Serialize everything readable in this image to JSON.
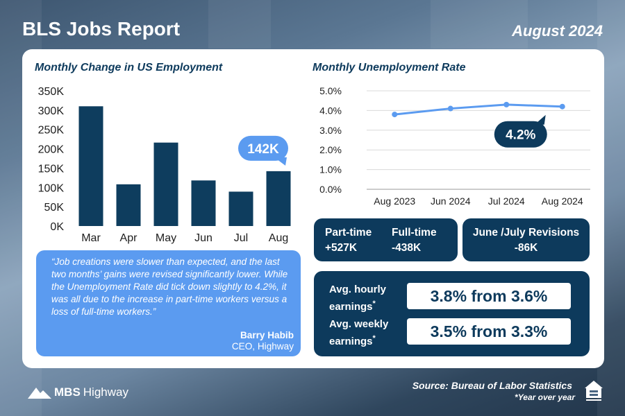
{
  "header": {
    "title": "BLS Jobs Report",
    "date": "August 2024"
  },
  "colors": {
    "navy": "#0d3a5c",
    "bar_navy": "#0e3d5e",
    "accent_blue": "#5b9bf0",
    "line_blue": "#5b9bf0",
    "card": "#ffffff"
  },
  "chart_data": [
    {
      "type": "bar",
      "title": "Monthly Change in US Employment",
      "categories": [
        "Mar",
        "Apr",
        "May",
        "Jun",
        "Jul",
        "Aug"
      ],
      "values": [
        310000,
        108000,
        216000,
        118000,
        89000,
        142000
      ],
      "y_ticks": [
        "0K",
        "50K",
        "100K",
        "150K",
        "200K",
        "250K",
        "300K",
        "350K"
      ],
      "ylim": [
        0,
        350000
      ],
      "grid": false,
      "callout": {
        "label": "142K",
        "category": "Aug"
      }
    },
    {
      "type": "line",
      "title": "Monthly Unemployment Rate",
      "categories": [
        "Aug 2023",
        "Jun 2024",
        "Jul 2024",
        "Aug 2024"
      ],
      "values": [
        3.8,
        4.1,
        4.3,
        4.2
      ],
      "y_ticks": [
        "0.0%",
        "1.0%",
        "2.0%",
        "3.0%",
        "4.0%",
        "5.0%"
      ],
      "ylim": [
        0,
        5
      ],
      "grid": true,
      "callout": {
        "label": "4.2%",
        "category": "Aug 2024"
      }
    }
  ],
  "quote": {
    "text": "“Job creations were slower than expected, and the last two months’ gains were revised significantly lower. While the Unemployment Rate did tick down slightly to 4.2%, it was all due to the increase in part-time workers versus a loss of full-time workers.”",
    "author": "Barry Habib",
    "role": "CEO, Highway"
  },
  "stats": {
    "part_time_label": "Part-time",
    "part_time_value": "+527K",
    "full_time_label": "Full-time",
    "full_time_value": "-438K",
    "revisions_label": "June /July Revisions",
    "revisions_value": "-86K"
  },
  "earnings": {
    "hourly_label": "Avg. hourly earnings",
    "hourly_value": "3.8% from 3.6%",
    "weekly_label": "Avg. weekly earnings",
    "weekly_value": "3.5% from 3.3%",
    "asterisk": "*"
  },
  "footer": {
    "logo_brand": "MBS",
    "logo_name": "Highway",
    "source": "Source: Bureau of Labor Statistics",
    "footnote": "*Year over year",
    "eho_icon": "equal-housing-opportunity-icon"
  }
}
